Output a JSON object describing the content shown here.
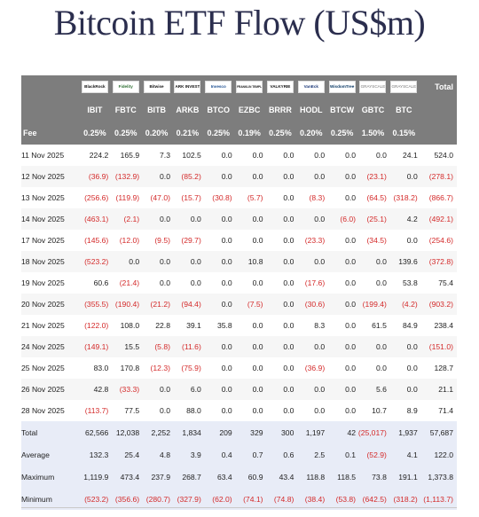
{
  "title": "Bitcoin ETF Flow (US$m)",
  "colors": {
    "header_bg": "#7d7d7d",
    "negative": "#d42a2a",
    "summary_bg": "#e8ecf7"
  },
  "header": {
    "total_label": "Total",
    "fee_label": "Fee",
    "logos": [
      "BlackRock",
      "Fidelity",
      "Bitwise",
      "ARK INVEST",
      "Invesco",
      "FRANKLIN TEMPLETON",
      "VALKYRIE",
      "VanEck",
      "WisdomTree",
      "GRAYSCALE",
      "GRAYSCALE"
    ],
    "tickers": [
      "IBIT",
      "FBTC",
      "BITB",
      "ARKB",
      "BTCO",
      "EZBC",
      "BRRR",
      "HODL",
      "BTCW",
      "GBTC",
      "BTC"
    ],
    "fees": [
      "0.25%",
      "0.25%",
      "0.20%",
      "0.21%",
      "0.25%",
      "0.19%",
      "0.25%",
      "0.20%",
      "0.25%",
      "1.50%",
      "0.15%"
    ]
  },
  "rows": [
    {
      "date": "11 Nov 2025",
      "values": [
        "224.2",
        "165.9",
        "7.3",
        "102.5",
        "0.0",
        "0.0",
        "0.0",
        "0.0",
        "0.0",
        "0.0",
        "24.1"
      ],
      "total": "524.0"
    },
    {
      "date": "12 Nov 2025",
      "values": [
        "(36.9)",
        "(132.9)",
        "0.0",
        "(85.2)",
        "0.0",
        "0.0",
        "0.0",
        "0.0",
        "0.0",
        "(23.1)",
        "0.0"
      ],
      "total": "(278.1)"
    },
    {
      "date": "13 Nov 2025",
      "values": [
        "(256.6)",
        "(119.9)",
        "(47.0)",
        "(15.7)",
        "(30.8)",
        "(5.7)",
        "0.0",
        "(8.3)",
        "0.0",
        "(64.5)",
        "(318.2)"
      ],
      "total": "(866.7)"
    },
    {
      "date": "14 Nov 2025",
      "values": [
        "(463.1)",
        "(2.1)",
        "0.0",
        "0.0",
        "0.0",
        "0.0",
        "0.0",
        "0.0",
        "(6.0)",
        "(25.1)",
        "4.2"
      ],
      "total": "(492.1)"
    },
    {
      "date": "17 Nov 2025",
      "values": [
        "(145.6)",
        "(12.0)",
        "(9.5)",
        "(29.7)",
        "0.0",
        "0.0",
        "0.0",
        "(23.3)",
        "0.0",
        "(34.5)",
        "0.0"
      ],
      "total": "(254.6)"
    },
    {
      "date": "18 Nov 2025",
      "values": [
        "(523.2)",
        "0.0",
        "0.0",
        "0.0",
        "0.0",
        "10.8",
        "0.0",
        "0.0",
        "0.0",
        "0.0",
        "139.6"
      ],
      "total": "(372.8)"
    },
    {
      "date": "19 Nov 2025",
      "values": [
        "60.6",
        "(21.4)",
        "0.0",
        "0.0",
        "0.0",
        "0.0",
        "0.0",
        "(17.6)",
        "0.0",
        "0.0",
        "53.8"
      ],
      "total": "75.4"
    },
    {
      "date": "20 Nov 2025",
      "values": [
        "(355.5)",
        "(190.4)",
        "(21.2)",
        "(94.4)",
        "0.0",
        "(7.5)",
        "0.0",
        "(30.6)",
        "0.0",
        "(199.4)",
        "(4.2)"
      ],
      "total": "(903.2)"
    },
    {
      "date": "21 Nov 2025",
      "values": [
        "(122.0)",
        "108.0",
        "22.8",
        "39.1",
        "35.8",
        "0.0",
        "0.0",
        "8.3",
        "0.0",
        "61.5",
        "84.9"
      ],
      "total": "238.4"
    },
    {
      "date": "24 Nov 2025",
      "values": [
        "(149.1)",
        "15.5",
        "(5.8)",
        "(11.6)",
        "0.0",
        "0.0",
        "0.0",
        "0.0",
        "0.0",
        "0.0",
        "0.0"
      ],
      "total": "(151.0)"
    },
    {
      "date": "25 Nov 2025",
      "values": [
        "83.0",
        "170.8",
        "(12.3)",
        "(75.9)",
        "0.0",
        "0.0",
        "0.0",
        "(36.9)",
        "0.0",
        "0.0",
        "0.0"
      ],
      "total": "128.7"
    },
    {
      "date": "26 Nov 2025",
      "values": [
        "42.8",
        "(33.3)",
        "0.0",
        "6.0",
        "0.0",
        "0.0",
        "0.0",
        "0.0",
        "0.0",
        "5.6",
        "0.0"
      ],
      "total": "21.1"
    },
    {
      "date": "28 Nov 2025",
      "values": [
        "(113.7)",
        "77.5",
        "0.0",
        "88.0",
        "0.0",
        "0.0",
        "0.0",
        "0.0",
        "0.0",
        "10.7",
        "8.9"
      ],
      "total": "71.4"
    }
  ],
  "summary": [
    {
      "label": "Total",
      "values": [
        "62,566",
        "12,038",
        "2,252",
        "1,834",
        "209",
        "329",
        "300",
        "1,197",
        "42",
        "(25,017)",
        "1,937"
      ],
      "total": "57,687"
    },
    {
      "label": "Average",
      "values": [
        "132.3",
        "25.4",
        "4.8",
        "3.9",
        "0.4",
        "0.7",
        "0.6",
        "2.5",
        "0.1",
        "(52.9)",
        "4.1"
      ],
      "total": "122.0"
    },
    {
      "label": "Maximum",
      "values": [
        "1,119.9",
        "473.4",
        "237.9",
        "268.7",
        "63.4",
        "60.9",
        "43.4",
        "118.8",
        "118.5",
        "73.8",
        "191.1"
      ],
      "total": "1,373.8"
    },
    {
      "label": "Minimum",
      "values": [
        "(523.2)",
        "(356.6)",
        "(280.7)",
        "(327.9)",
        "(62.0)",
        "(74.1)",
        "(74.8)",
        "(38.4)",
        "(53.8)",
        "(642.5)",
        "(318.2)"
      ],
      "total": "(1,113.7)"
    }
  ]
}
